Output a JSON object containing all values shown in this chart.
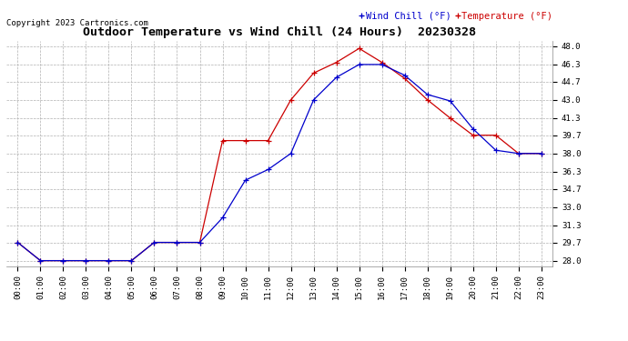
{
  "title": "Outdoor Temperature vs Wind Chill (24 Hours)  20230328",
  "copyright": "Copyright 2023 Cartronics.com",
  "legend_wind_chill": "Wind Chill (°F)",
  "legend_temperature": "Temperature (°F)",
  "x_labels": [
    "00:00",
    "01:00",
    "02:00",
    "03:00",
    "04:00",
    "05:00",
    "06:00",
    "07:00",
    "08:00",
    "09:00",
    "10:00",
    "11:00",
    "12:00",
    "13:00",
    "14:00",
    "15:00",
    "16:00",
    "17:00",
    "18:00",
    "19:00",
    "20:00",
    "21:00",
    "22:00",
    "23:00"
  ],
  "temperature": [
    29.7,
    28.0,
    28.0,
    28.0,
    28.0,
    28.0,
    29.7,
    29.7,
    29.7,
    39.2,
    39.2,
    39.2,
    43.0,
    45.5,
    46.5,
    47.8,
    46.5,
    45.0,
    43.0,
    41.3,
    39.7,
    39.7,
    38.0,
    38.0
  ],
  "wind_chill": [
    29.7,
    28.0,
    28.0,
    28.0,
    28.0,
    28.0,
    29.7,
    29.7,
    29.7,
    32.0,
    35.5,
    36.5,
    38.0,
    43.0,
    45.1,
    46.3,
    46.3,
    45.3,
    43.5,
    42.9,
    40.3,
    38.3,
    38.0,
    38.0
  ],
  "y_ticks": [
    28.0,
    29.7,
    31.3,
    33.0,
    34.7,
    36.3,
    38.0,
    39.7,
    41.3,
    43.0,
    44.7,
    46.3,
    48.0
  ],
  "ylim": [
    27.5,
    48.5
  ],
  "temp_color": "#cc0000",
  "wind_chill_color": "#0000cc",
  "background_color": "#ffffff",
  "grid_color": "#b0b0b0",
  "title_fontsize": 9.5,
  "axis_fontsize": 6.5,
  "legend_fontsize": 7.5,
  "copyright_fontsize": 6.5
}
